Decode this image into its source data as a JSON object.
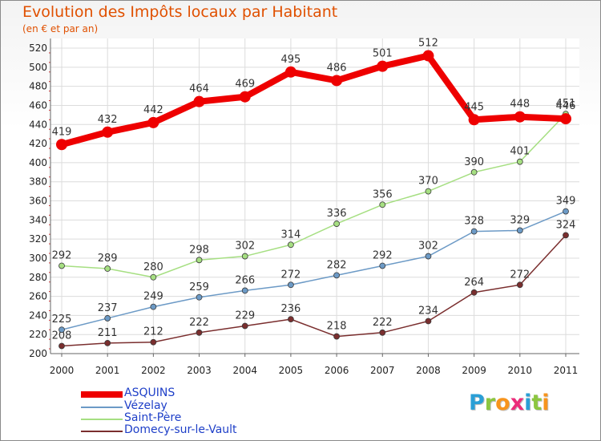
{
  "chart_data": {
    "type": "line",
    "title": "Evolution des Impôts locaux par Habitant",
    "subtitle": "(en € et par an)",
    "x": [
      "2000",
      "2001",
      "2002",
      "2003",
      "2004",
      "2005",
      "2006",
      "2007",
      "2008",
      "2009",
      "2010",
      "2011"
    ],
    "ylim": [
      200,
      520
    ],
    "yticks": [
      200,
      220,
      240,
      260,
      280,
      300,
      320,
      340,
      360,
      380,
      400,
      420,
      440,
      460,
      480,
      500,
      520
    ],
    "grid": true,
    "legend_position": "bottom-left",
    "series": [
      {
        "name": "ASQUINS",
        "color": "#ee0000",
        "values": [
          419,
          432,
          442,
          464,
          469,
          495,
          486,
          501,
          512,
          445,
          448,
          446
        ]
      },
      {
        "name": "Vézelay",
        "color": "#6c9ac6",
        "values": [
          225,
          237,
          249,
          259,
          266,
          272,
          282,
          292,
          302,
          328,
          329,
          349
        ]
      },
      {
        "name": "Saint-Père",
        "color": "#a6df82",
        "values": [
          292,
          289,
          280,
          298,
          302,
          314,
          336,
          356,
          370,
          390,
          401,
          451
        ]
      },
      {
        "name": "Domecy-sur-le-Vault",
        "color": "#7a2e2e",
        "values": [
          208,
          211,
          212,
          222,
          229,
          236,
          218,
          222,
          234,
          264,
          272,
          324
        ]
      }
    ]
  },
  "logo": {
    "letters": [
      "P",
      "r",
      "o",
      "x",
      "i",
      "t",
      "i"
    ],
    "colors": [
      "#2a9fd6",
      "#8cc63f",
      "#f7941d",
      "#ec2c7a",
      "#2a9fd6",
      "#8cc63f",
      "#f7941d"
    ]
  }
}
